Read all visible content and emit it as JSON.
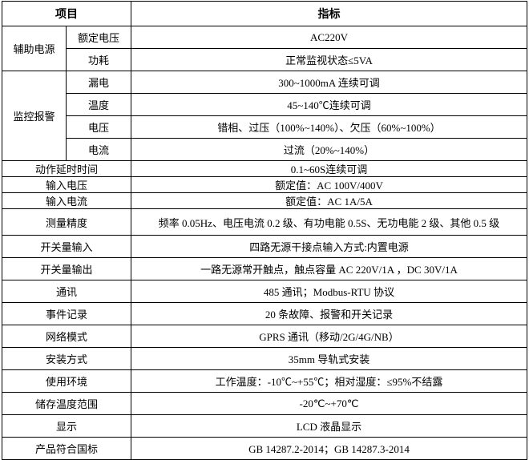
{
  "header": {
    "item": "项目",
    "spec": "指标"
  },
  "groups": [
    {
      "label": "辅助电源",
      "rows": [
        {
          "label": "额定电压",
          "value": "AC220V"
        },
        {
          "label": "功耗",
          "value": "正常监视状态≤5VA"
        }
      ]
    },
    {
      "label": "监控报警",
      "rows": [
        {
          "label": "漏电",
          "value": "300~1000mA 连续可调"
        },
        {
          "label": "温度",
          "value": "45~140℃连续可调"
        },
        {
          "label": "电压",
          "value": "错相、过压（100%~140%）、欠压（60%~100%）"
        },
        {
          "label": "电流",
          "value": "过流（20%~140%）"
        }
      ]
    }
  ],
  "rows": [
    {
      "label": "动作延时时间",
      "value": "0.1~60S连续可调"
    },
    {
      "label": "输入电压",
      "value": "额定值：AC 100V/400V"
    },
    {
      "label": "输入电流",
      "value": "额定值：AC 1A/5A"
    },
    {
      "label": "测量精度",
      "value": "频率 0.05Hz、电压电流 0.2 级、有功电能 0.5S、无功电能 2 级、其他 0.5 级"
    },
    {
      "label": "开关量输入",
      "value": "四路无源干接点输入方式:内置电源"
    },
    {
      "label": "开关量输出",
      "value": "一路无源常开触点，触点容量 AC 220V/1A ，DC 30V/1A"
    },
    {
      "label": "通讯",
      "value": "485 通讯；Modbus-RTU 协议"
    },
    {
      "label": "事件记录",
      "value": "20 条故障、报警和开关记录"
    },
    {
      "label": "网络模式",
      "value": "GPRS 通讯（移动/2G/4G/NB）"
    },
    {
      "label": "安装方式",
      "value": "35mm 导轨式安装"
    },
    {
      "label": "使用环境",
      "value": "工作温度：-10℃~+55℃；相对湿度：≤95%不结露"
    },
    {
      "label": "储存温度范围",
      "value": "-20℃~+70℃"
    },
    {
      "label": "显示",
      "value": "LCD 液晶显示"
    },
    {
      "label": "产品符合国标",
      "value": "GB 14287.2-2014；GB 14287.3-2014"
    }
  ]
}
